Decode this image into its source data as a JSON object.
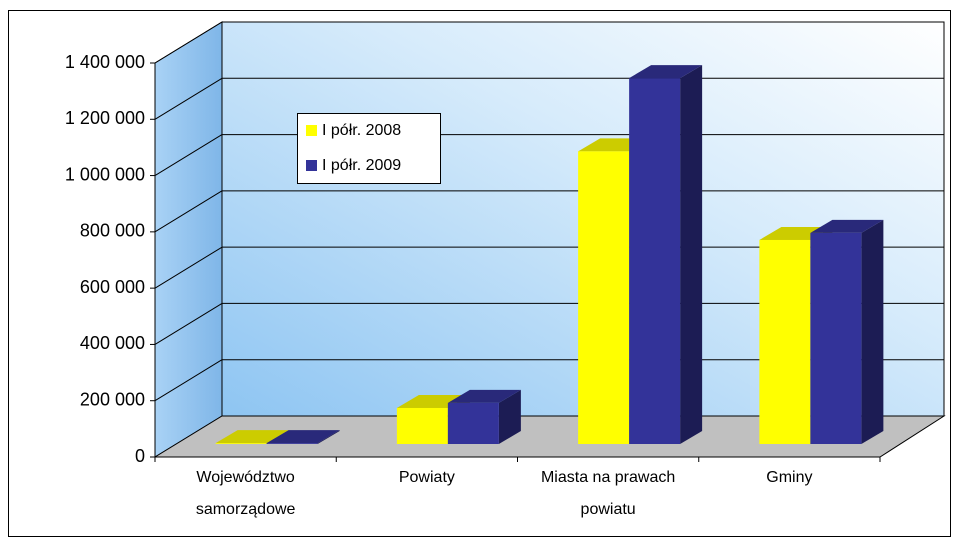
{
  "chart_data": {
    "type": "bar3d",
    "categories": [
      "Województwo samorządowe",
      "Powiaty",
      "Miasta na prawach powiatu",
      "Gminy"
    ],
    "series": [
      {
        "name": "I półr. 2008",
        "color": "#ffff00",
        "values": [
          3000,
          128000,
          1040000,
          725000
        ]
      },
      {
        "name": "I półr. 2009",
        "color": "#333399",
        "values": [
          3000,
          146000,
          1300000,
          750000
        ]
      }
    ],
    "ylim": [
      0,
      1400000
    ],
    "yticks": [
      0,
      {
        "value": 200000,
        "label": "200 000"
      },
      {
        "value": 400000,
        "label": "400 000"
      },
      {
        "value": 600000,
        "label": "600 000"
      },
      {
        "value": 800000,
        "label": "800 000"
      },
      {
        "value": 1000000,
        "label": "1 000 000"
      },
      {
        "value": 1200000,
        "label": "1 200 000"
      },
      {
        "value": 1400000,
        "label": "1 400 000"
      }
    ],
    "grid": true
  }
}
